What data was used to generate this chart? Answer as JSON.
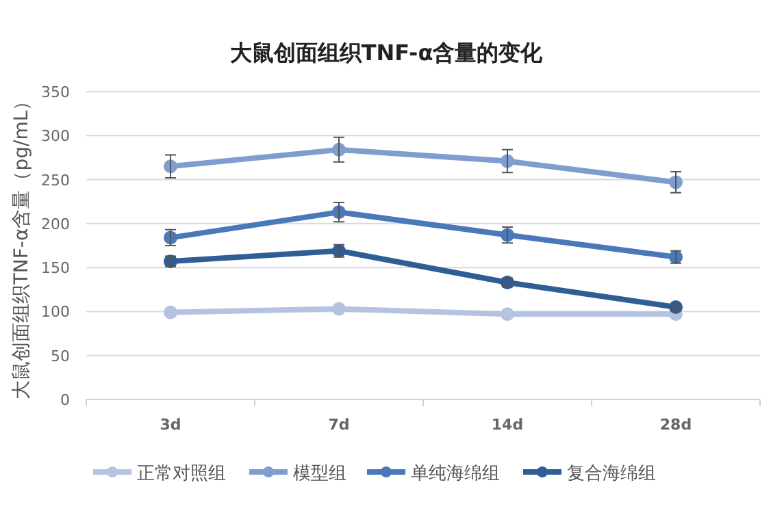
{
  "chart_data": {
    "type": "line",
    "title": "大鼠创面组织TNF-α含量的变化",
    "ylabel": "大鼠创面组织TNF-α含量（pg/mL）",
    "categories": [
      "3d",
      "7d",
      "14d",
      "28d"
    ],
    "series": [
      {
        "name": "正常对照组",
        "color": "#b4c3e0",
        "values": [
          99,
          103,
          97,
          97
        ]
      },
      {
        "name": "模型组",
        "color": "#7f9dce",
        "values": [
          265,
          284,
          271,
          247
        ],
        "errors": [
          13,
          14,
          13,
          12
        ]
      },
      {
        "name": "单纯海绵组",
        "color": "#4a78b8",
        "values": [
          184,
          213,
          187,
          162
        ],
        "errors": [
          9,
          11,
          9,
          7
        ]
      },
      {
        "name": "复合海绵组",
        "color": "#2f5d95",
        "values": [
          157,
          169,
          133,
          105
        ],
        "errors": [
          6,
          7,
          5,
          4
        ]
      }
    ],
    "ylim": [
      0,
      350
    ],
    "yticks": [
      0,
      50,
      100,
      150,
      200,
      250,
      300,
      350
    ],
    "grid": "y",
    "legend": "bottom",
    "marker": "circle",
    "line_style": "solid"
  }
}
